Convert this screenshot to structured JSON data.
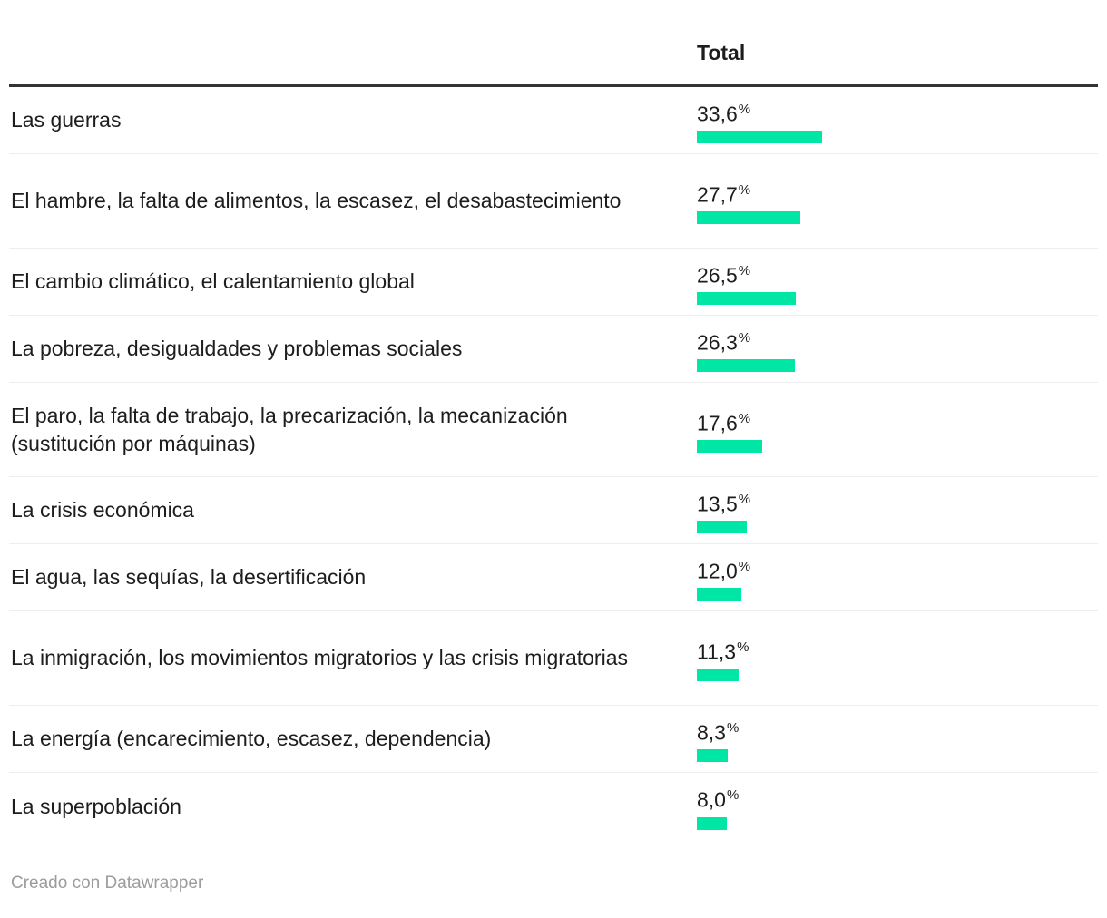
{
  "table": {
    "header": {
      "total_label": "Total"
    },
    "rows": [
      {
        "label": "Las guerras",
        "value": 33.6,
        "display_value": "33,6",
        "unit": "%"
      },
      {
        "label": "El hambre, la falta de alimentos, la escasez, el desabastecimiento",
        "value": 27.7,
        "display_value": "27,7",
        "unit": "%"
      },
      {
        "label": "El cambio climático, el calentamiento global",
        "value": 26.5,
        "display_value": "26,5",
        "unit": "%"
      },
      {
        "label": "La pobreza, desigualdades y problemas sociales",
        "value": 26.3,
        "display_value": "26,3",
        "unit": "%"
      },
      {
        "label": "El paro, la falta de trabajo, la precarización, la mecanización (sustitución por máquinas)",
        "value": 17.6,
        "display_value": "17,6",
        "unit": "%"
      },
      {
        "label": "La crisis económica",
        "value": 13.5,
        "display_value": "13,5",
        "unit": "%"
      },
      {
        "label": "El agua, las sequías, la desertificación",
        "value": 12.0,
        "display_value": "12,0",
        "unit": "%"
      },
      {
        "label": "La inmigración, los movimientos migratorios y las crisis migratorias",
        "value": 11.3,
        "display_value": "11,3",
        "unit": "%"
      },
      {
        "label": "La energía (encarecimiento, escasez, dependencia)",
        "value": 8.3,
        "display_value": "8,3",
        "unit": "%"
      },
      {
        "label": "La superpoblación",
        "value": 8.0,
        "display_value": "8,0",
        "unit": "%"
      }
    ]
  },
  "footer": {
    "attribution": "Creado con Datawrapper"
  },
  "colors": {
    "bar": "#00e6a4",
    "header_rule": "#333333",
    "divider": "#eeeeee",
    "text": "#1d1d1d",
    "footer_text": "#9c9c9c"
  },
  "chart_data": {
    "type": "bar",
    "orientation": "horizontal",
    "series_name": "Total",
    "categories": [
      "Las guerras",
      "El hambre, la falta de alimentos, la escasez, el desabastecimiento",
      "El cambio climático, el calentamiento global",
      "La pobreza, desigualdades y problemas sociales",
      "El paro, la falta de trabajo, la precarización, la mecanización (sustitución por máquinas)",
      "La crisis económica",
      "El agua, las sequías, la desertificación",
      "La inmigración, los movimientos migratorios y las crisis migratorias",
      "La energía (encarecimiento, escasez, dependencia)",
      "La superpoblación"
    ],
    "values": [
      33.6,
      27.7,
      26.5,
      26.3,
      17.6,
      13.5,
      12.0,
      11.3,
      8.3,
      8.0
    ],
    "value_labels": [
      "33,6%",
      "27,7%",
      "26,5%",
      "26,3%",
      "17,6%",
      "13,5%",
      "12,0%",
      "11,3%",
      "8,3%",
      "8,0%"
    ],
    "title": "",
    "xlabel": "",
    "ylabel": "",
    "xlim": [
      0,
      33.6
    ],
    "grid": false,
    "legend": false,
    "bar_color": "#00e6a4",
    "source_note": "Creado con Datawrapper"
  }
}
